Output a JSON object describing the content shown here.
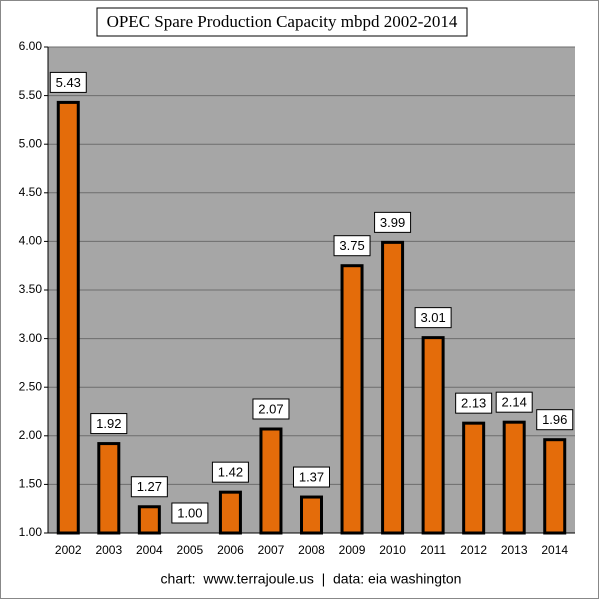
{
  "chart_data": {
    "type": "bar",
    "title": "OPEC Spare Production Capacity mbpd 2002-2014",
    "footer": "chart:  www.terrajoule.us  |  data: eia washington",
    "categories": [
      "2002",
      "2003",
      "2004",
      "2005",
      "2006",
      "2007",
      "2008",
      "2009",
      "2010",
      "2011",
      "2012",
      "2013",
      "2014"
    ],
    "values": [
      5.43,
      1.92,
      1.27,
      1.0,
      1.42,
      2.07,
      1.37,
      3.75,
      3.99,
      3.01,
      2.13,
      2.14,
      1.96
    ],
    "value_labels": [
      "5.43",
      "1.92",
      "1.27",
      "1.00",
      "1.42",
      "2.07",
      "1.37",
      "3.75",
      "3.99",
      "3.01",
      "2.13",
      "2.14",
      "1.96"
    ],
    "color": "#e46c0a",
    "ylim": [
      1,
      6
    ],
    "yticks": [
      {
        "value": 1,
        "label": "1.00"
      },
      {
        "value": 1.5,
        "label": "1.50"
      },
      {
        "value": 2,
        "label": "2.00"
      },
      {
        "value": 2.5,
        "label": "2.50"
      },
      {
        "value": 3,
        "label": "3.00"
      },
      {
        "value": 3.5,
        "label": "3.50"
      },
      {
        "value": 4,
        "label": "4.00"
      },
      {
        "value": 4.5,
        "label": "4.50"
      },
      {
        "value": 5,
        "label": "5.00"
      },
      {
        "value": 5.5,
        "label": "5.50"
      },
      {
        "value": 6,
        "label": "6.00"
      }
    ],
    "grid": true
  }
}
